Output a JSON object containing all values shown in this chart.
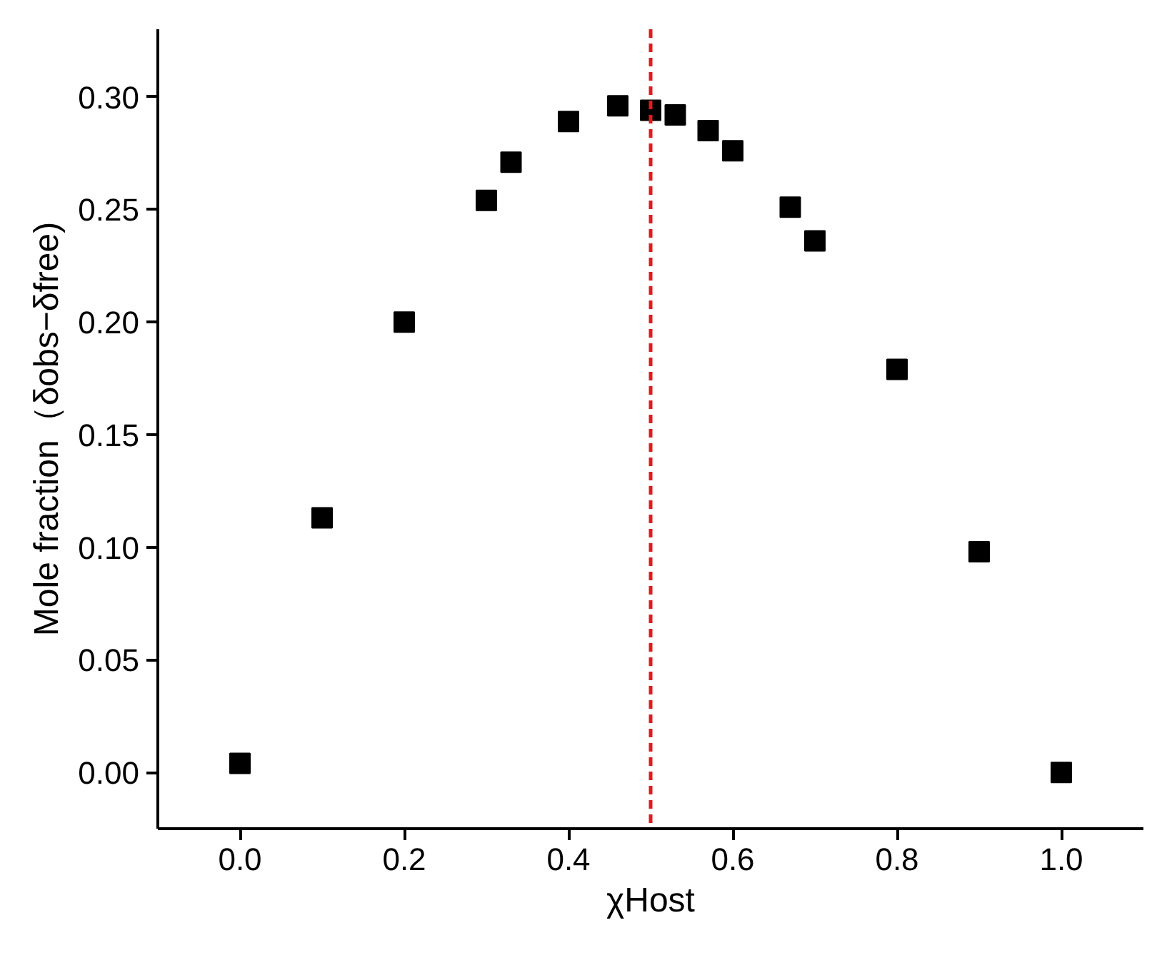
{
  "chart_data": {
    "type": "scatter",
    "xlabel": "χHost",
    "ylabel": "Mole fraction（δobs−δfree)",
    "x": [
      0,
      0.1,
      0.2,
      0.3,
      0.33,
      0.4,
      0.46,
      0.5,
      0.53,
      0.57,
      0.6,
      0.67,
      0.7,
      0.8,
      0.9,
      1.0
    ],
    "series": [
      {
        "color": "#000000",
        "values": [
          0.004,
          0.113,
          0.2,
          0.254,
          0.271,
          0.289,
          0.296,
          0.294,
          0.292,
          0.285,
          0.276,
          0.251,
          0.236,
          0.179,
          0.098,
          0.0
        ]
      }
    ],
    "marker": "square",
    "grid": false,
    "xlim": [
      -0.1,
      1.1
    ],
    "xticks": [
      {
        "value": 0,
        "label": "0.0"
      },
      0.2,
      0.4,
      0.6,
      0.8,
      {
        "value": 1,
        "label": "1.0"
      }
    ],
    "ylim": [
      -0.025,
      0.33
    ],
    "yticks": [
      {
        "value": 0,
        "label": "0.00"
      },
      0.05,
      {
        "value": 0.1,
        "label": "0.10"
      },
      0.15,
      {
        "value": 0.2,
        "label": "0.20"
      },
      0.25,
      {
        "value": 0.3,
        "label": "0.30"
      }
    ],
    "ref_lines": [
      {
        "axis": "x",
        "value": 0.5,
        "color": "#e31a1c",
        "line_style": "dashed"
      }
    ]
  }
}
